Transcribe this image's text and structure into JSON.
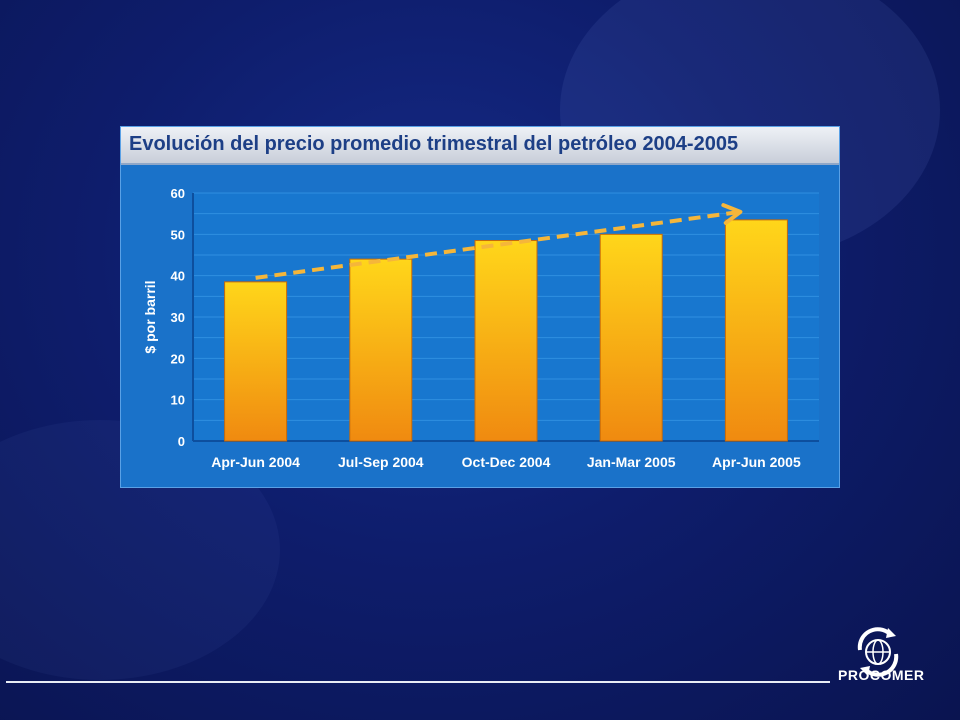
{
  "chart_data": {
    "type": "bar",
    "title": "Evolución del precio promedio trimestral del petróleo 2004-2005",
    "ylabel": "$ por barril",
    "xlabel": "",
    "categories": [
      "Apr-Jun 2004",
      "Jul-Sep 2004",
      "Oct-Dec 2004",
      "Jan-Mar 2005",
      "Apr-Jun 2005"
    ],
    "values": [
      38.5,
      44,
      48.5,
      50,
      53.5
    ],
    "ylim": [
      0,
      60
    ],
    "yticks": [
      "0",
      "10",
      "20",
      "30",
      "40",
      "50",
      "60"
    ],
    "grid": true,
    "trend_arrow": true,
    "colors": {
      "bar_top": "#ffd61a",
      "bar_bottom": "#f08a10",
      "trend": "#f5b63a",
      "plot_bg": "#1877cf",
      "grid": "#2f8fe0"
    }
  },
  "logo": {
    "name": "PROCOMER",
    "icon": "globe-arrows-icon"
  }
}
